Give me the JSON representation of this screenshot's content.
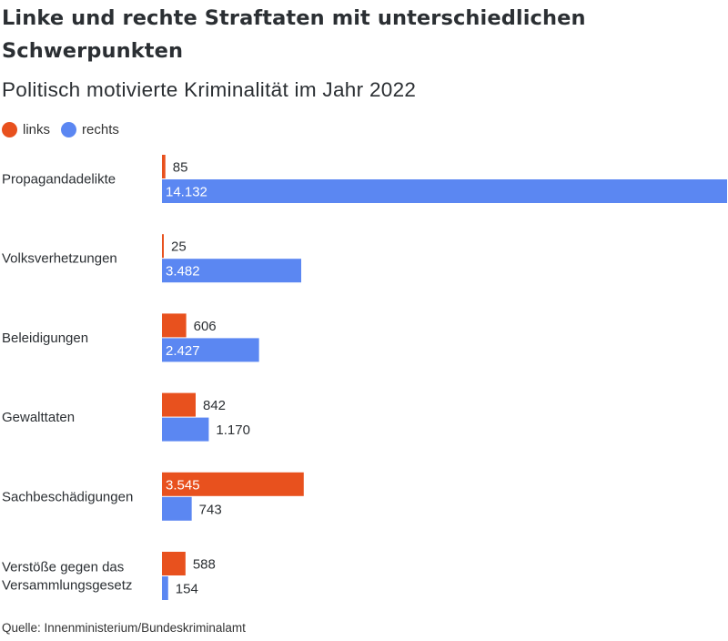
{
  "title": "Linke und rechte Straftaten mit unterschiedlichen Schwerpunkten",
  "subtitle": "Politisch motivierte Kriminalität im Jahr 2022",
  "source": "Quelle: Innenministerium/Bundeskriminalamt",
  "colors": {
    "links": "#e8511e",
    "rechts": "#5b87f2"
  },
  "chart_data": {
    "type": "bar",
    "orientation": "horizontal",
    "categories": [
      [
        "Propagandadelikte"
      ],
      [
        "Volksverhetzungen"
      ],
      [
        "Beleidigungen"
      ],
      [
        "Gewalttaten"
      ],
      [
        "Sachbeschädigungen"
      ],
      [
        "Verstöße gegen das",
        "Versammlungsgesetz"
      ]
    ],
    "series": [
      {
        "name": "links",
        "color": "#e8511e",
        "values": [
          85,
          25,
          606,
          842,
          3545,
          588
        ],
        "labels": [
          "85",
          "25",
          "606",
          "842",
          "3.545",
          "588"
        ]
      },
      {
        "name": "rechts",
        "color": "#5b87f2",
        "values": [
          14132,
          3482,
          2427,
          1170,
          743,
          154
        ],
        "labels": [
          "14.132",
          "3.482",
          "2.427",
          "1.170",
          "743",
          "154"
        ]
      }
    ],
    "xlim": [
      0,
      14132
    ],
    "legend": "top-left",
    "grid": false
  }
}
